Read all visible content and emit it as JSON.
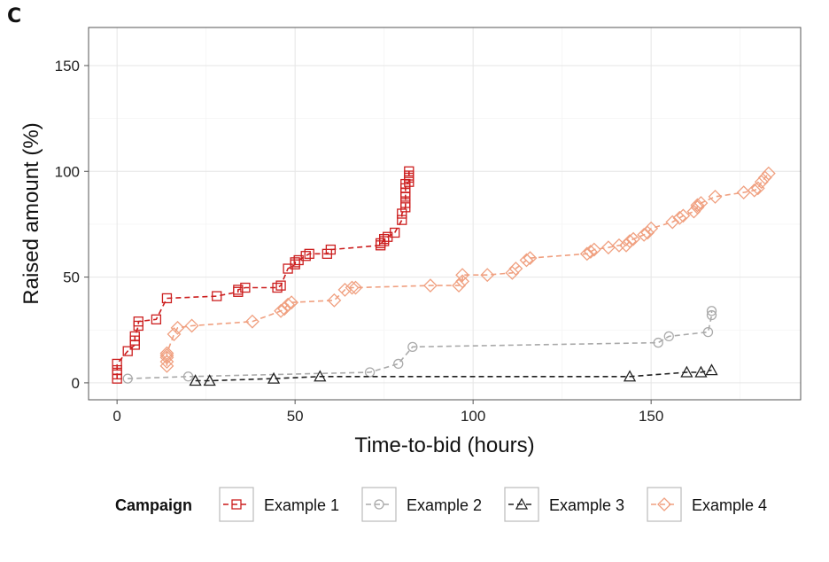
{
  "panel_label": "C",
  "chart_data": {
    "type": "line",
    "title": "",
    "xlabel": "Time-to-bid (hours)",
    "ylabel": "Raised amount (%)",
    "xlim": [
      -8,
      192
    ],
    "ylim": [
      -8,
      168
    ],
    "xticks": [
      0,
      50,
      100,
      150
    ],
    "yticks": [
      0,
      50,
      100,
      150
    ],
    "grid": true,
    "legend_position": "bottom",
    "legend_title": "Campaign",
    "series": [
      {
        "name": "Example 1",
        "color": "#cc1f1f",
        "marker": "square",
        "x": [
          0,
          0,
          0,
          0,
          3,
          5,
          5,
          5,
          6,
          6,
          11,
          14,
          28,
          34,
          34,
          36,
          45,
          46,
          48,
          50,
          50,
          51,
          53,
          54,
          59,
          60,
          74,
          74,
          75,
          75,
          76,
          78,
          80,
          80,
          81,
          81,
          81,
          81,
          81,
          81,
          82,
          82,
          82,
          82
        ],
        "y": [
          2,
          4,
          6,
          9,
          15,
          18,
          20,
          22,
          27,
          29,
          30,
          40,
          41,
          43,
          44,
          45,
          45,
          46,
          54,
          56,
          57,
          58,
          60,
          61,
          61,
          63,
          65,
          66,
          67,
          68,
          69,
          71,
          77,
          80,
          83,
          85,
          88,
          90,
          92,
          94,
          95,
          97,
          98,
          100
        ]
      },
      {
        "name": "Example 2",
        "color": "#aaaaaa",
        "marker": "circle",
        "x": [
          3,
          20,
          71,
          79,
          83,
          152,
          155,
          166,
          167,
          167
        ],
        "y": [
          2,
          3,
          5,
          9,
          17,
          19,
          22,
          24,
          32,
          34
        ]
      },
      {
        "name": "Example 3",
        "color": "#222222",
        "marker": "triangle",
        "x": [
          22,
          26,
          44,
          57,
          144,
          160,
          164,
          167
        ],
        "y": [
          1,
          1,
          2,
          3,
          3,
          5,
          5,
          6
        ]
      },
      {
        "name": "Example 4",
        "color": "#f0a080",
        "marker": "diamond",
        "x": [
          14,
          14,
          14,
          14,
          14,
          16,
          17,
          21,
          38,
          46,
          47,
          48,
          49,
          61,
          64,
          66,
          67,
          88,
          96,
          97,
          97,
          104,
          111,
          112,
          115,
          116,
          132,
          133,
          134,
          138,
          141,
          143,
          144,
          145,
          148,
          149,
          150,
          156,
          158,
          159,
          162,
          163,
          163,
          164,
          168,
          176,
          179,
          180,
          181,
          182,
          183
        ],
        "y": [
          8,
          10,
          12,
          13,
          14,
          23,
          26,
          27,
          29,
          34,
          35,
          37,
          38,
          39,
          44,
          45,
          45,
          46,
          46,
          48,
          51,
          51,
          52,
          54,
          58,
          59,
          61,
          62,
          63,
          64,
          65,
          65,
          67,
          68,
          70,
          71,
          73,
          76,
          78,
          79,
          81,
          83,
          84,
          85,
          88,
          90,
          91,
          92,
          95,
          97,
          99
        ]
      }
    ]
  }
}
